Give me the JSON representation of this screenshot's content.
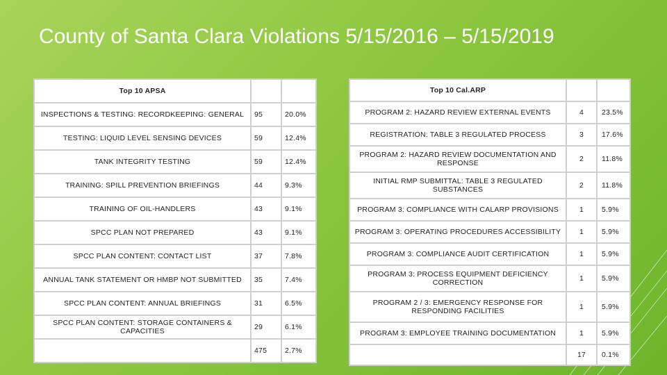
{
  "slide": {
    "title": "County of Santa Clara Violations 5/15/2016 – 5/15/2019"
  },
  "apsa": {
    "header": "Top 10 APSA",
    "rows": [
      {
        "name": "INSPECTIONS & TESTING: RECORDKEEPING: GENERAL",
        "count": "95",
        "pct": "20.0%"
      },
      {
        "name": "TESTING: LIQUID LEVEL SENSING DEVICES",
        "count": "59",
        "pct": "12.4%"
      },
      {
        "name": "TANK INTEGRITY TESTING",
        "count": "59",
        "pct": "12.4%"
      },
      {
        "name": "TRAINING: SPILL PREVENTION BRIEFINGS",
        "count": "44",
        "pct": "9.3%"
      },
      {
        "name": "TRAINING OF OIL-HANDLERS",
        "count": "43",
        "pct": "9.1%"
      },
      {
        "name": "SPCC PLAN NOT PREPARED",
        "count": "43",
        "pct": "9.1%"
      },
      {
        "name": "SPCC PLAN CONTENT: CONTACT LIST",
        "count": "37",
        "pct": "7.8%"
      },
      {
        "name": "ANNUAL TANK STATEMENT OR HMBP NOT SUBMITTED",
        "count": "35",
        "pct": "7.4%"
      },
      {
        "name": "SPCC PLAN CONTENT: ANNUAL BRIEFINGS",
        "count": "31",
        "pct": "6.5%"
      },
      {
        "name": "SPCC PLAN CONTENT: STORAGE CONTAINERS & CAPACITIES",
        "count": "29",
        "pct": "6.1%"
      }
    ],
    "total": {
      "count": "475",
      "pct": "2.7%"
    }
  },
  "calarp": {
    "header": "Top 10 Cal.ARP",
    "rows": [
      {
        "name": "PROGRAM 2: HAZARD REVIEW EXTERNAL EVENTS",
        "count": "4",
        "pct": "23.5%"
      },
      {
        "name": "REGISTRATION: TABLE 3 REGULATED PROCESS",
        "count": "3",
        "pct": "17.6%"
      },
      {
        "name": "PROGRAM 2: HAZARD REVIEW DOCUMENTATION AND RESPONSE",
        "count": "2",
        "pct": "11.8%"
      },
      {
        "name": "INITIAL RMP SUBMITTAL: TABLE 3 REGULATED SUBSTANCES",
        "count": "2",
        "pct": "11.8%"
      },
      {
        "name": "PROGRAM 3: COMPLIANCE WITH CALARP PROVISIONS",
        "count": "1",
        "pct": "5.9%"
      },
      {
        "name": "PROGRAM 3: OPERATING PROCEDURES ACCESSIBILITY",
        "count": "1",
        "pct": "5.9%"
      },
      {
        "name": "PROGRAM 3: COMPLIANCE AUDIT CERTIFICATION",
        "count": "1",
        "pct": "5.9%"
      },
      {
        "name": "PROGRAM 3: PROCESS EQUIPMENT DEFICIENCY CORRECTION",
        "count": "1",
        "pct": "5.9%"
      },
      {
        "name": "PROGRAM 2 / 3: EMERGENCY RESPONSE FOR RESPONDING FACILITIES",
        "count": "1",
        "pct": "5.9%"
      },
      {
        "name": "PROGRAM 3: EMPLOYEE TRAINING DOCUMENTATION",
        "count": "1",
        "pct": "5.9%"
      }
    ],
    "total": {
      "count": "17",
      "pct": "0.1%"
    }
  }
}
